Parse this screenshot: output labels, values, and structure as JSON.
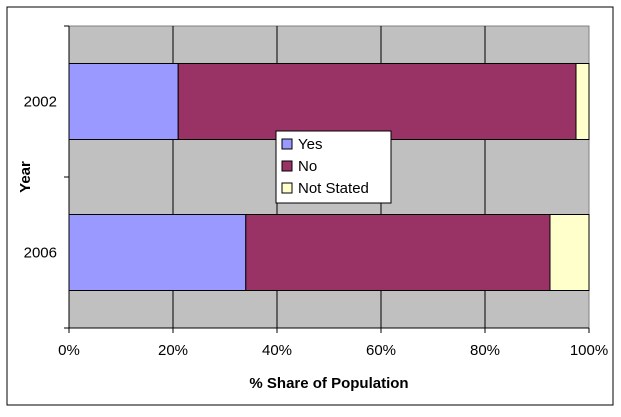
{
  "chart_data": {
    "type": "bar",
    "orientation": "horizontal",
    "stacked": "percent",
    "categories": [
      "2002",
      "2006"
    ],
    "series": [
      {
        "name": "Yes",
        "values": [
          21,
          34
        ],
        "color": "#9999ff"
      },
      {
        "name": "No",
        "values": [
          76.5,
          58.5
        ],
        "color": "#993366"
      },
      {
        "name": "Not Stated",
        "values": [
          2.5,
          7.5
        ],
        "color": "#ffffcc"
      }
    ],
    "xlabel": "% Share of Population",
    "ylabel": "Year",
    "xlim": [
      0,
      100
    ],
    "x_ticks": [
      "0%",
      "20%",
      "40%",
      "60%",
      "80%",
      "100%"
    ],
    "grid": true,
    "plot_background": "#c0c0c0",
    "legend": "center"
  }
}
